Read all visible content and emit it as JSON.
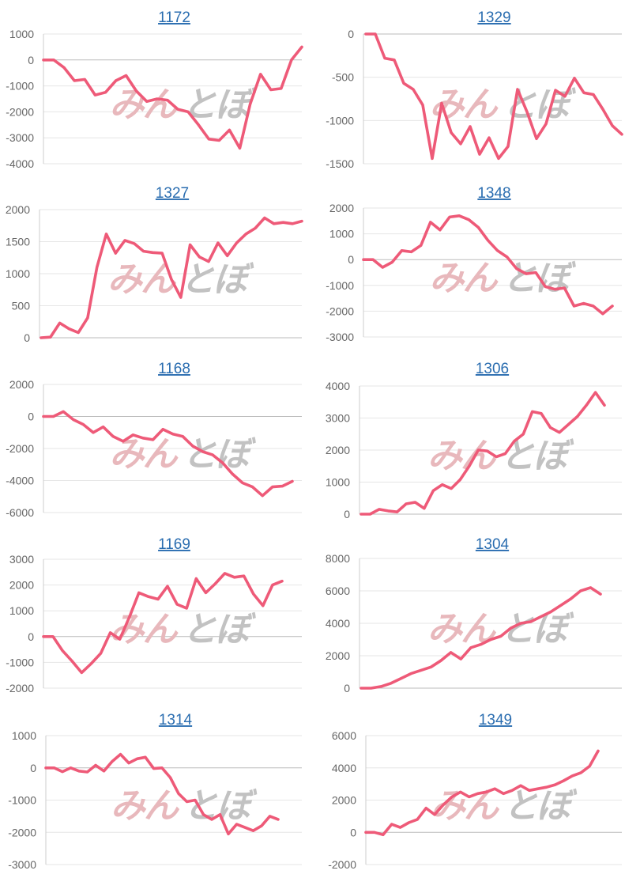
{
  "colors": {
    "line": "#ee5a78",
    "title": "#2a6db0"
  },
  "watermark": {
    "part1": "みん",
    "part2": "とぼ"
  },
  "chart_data": [
    {
      "type": "line",
      "title": "1172",
      "ylim": [
        -4000,
        1000
      ],
      "yticks": [
        1000,
        0,
        -1000,
        -2000,
        -3000,
        -4000
      ],
      "tick_labels": [
        "1000",
        "0",
        "-1000",
        "-2000",
        "-3000",
        "-4000"
      ],
      "values": [
        0,
        0,
        -300,
        -800,
        -750,
        -1350,
        -1250,
        -800,
        -600,
        -1200,
        -1600,
        -1500,
        -1550,
        -1900,
        -2000,
        -2500,
        -3050,
        -3100,
        -2700,
        -3400,
        -1700,
        -550,
        -1150,
        -1100,
        0,
        500
      ]
    },
    {
      "type": "line",
      "title": "1329",
      "ylim": [
        -1500,
        0
      ],
      "yticks": [
        0,
        -500,
        -1000,
        -1500
      ],
      "tick_labels": [
        "0",
        "-500",
        "-1000",
        "-1500"
      ],
      "values": [
        0,
        0,
        -280,
        -300,
        -570,
        -640,
        -820,
        -1440,
        -800,
        -1140,
        -1270,
        -1070,
        -1390,
        -1200,
        -1440,
        -1300,
        -640,
        -900,
        -1210,
        -1040,
        -650,
        -720,
        -510,
        -680,
        -700,
        -870,
        -1060,
        -1160
      ]
    },
    {
      "type": "line",
      "title": "1327",
      "ylim": [
        0,
        2000
      ],
      "yticks": [
        2000,
        1500,
        1000,
        500,
        0
      ],
      "tick_labels": [
        "2000",
        "1500",
        "1000",
        "500",
        "0"
      ],
      "values": [
        0,
        10,
        230,
        140,
        80,
        310,
        1100,
        1620,
        1320,
        1520,
        1470,
        1350,
        1330,
        1320,
        910,
        630,
        1450,
        1260,
        1190,
        1480,
        1280,
        1480,
        1620,
        1710,
        1870,
        1780,
        1800,
        1780,
        1820
      ]
    },
    {
      "type": "line",
      "title": "1348",
      "ylim": [
        -3000,
        2000
      ],
      "yticks": [
        2000,
        1000,
        0,
        -1000,
        -2000,
        -3000
      ],
      "tick_labels": [
        "2000",
        "1000",
        "0",
        "-1000",
        "-2000",
        "-3000"
      ],
      "values": [
        0,
        0,
        -300,
        -100,
        350,
        300,
        550,
        1450,
        1150,
        1650,
        1700,
        1550,
        1250,
        750,
        350,
        100,
        -350,
        -550,
        -500,
        -1050,
        -1150,
        -1100,
        -1800,
        -1700,
        -1800,
        -2100,
        -1800
      ]
    },
    {
      "type": "line",
      "title": "1168",
      "ylim": [
        -6000,
        2000
      ],
      "yticks": [
        2000,
        0,
        -2000,
        -4000,
        -6000
      ],
      "tick_labels": [
        "2000",
        "0",
        "-2000",
        "-4000",
        "-6000"
      ],
      "values": [
        0,
        0,
        300,
        -200,
        -500,
        -1000,
        -650,
        -1250,
        -1550,
        -1150,
        -1350,
        -1450,
        -800,
        -1100,
        -1250,
        -1850,
        -2200,
        -2400,
        -2900,
        -3600,
        -4150,
        -4400,
        -4950,
        -4400,
        -4350,
        -4050
      ]
    },
    {
      "type": "line",
      "title": "1306",
      "ylim": [
        0,
        4000
      ],
      "yticks": [
        4000,
        3000,
        2000,
        1000,
        0
      ],
      "tick_labels": [
        "4000",
        "3000",
        "2000",
        "1000",
        "0"
      ],
      "values": [
        0,
        0,
        150,
        100,
        70,
        320,
        370,
        180,
        730,
        920,
        800,
        1080,
        1500,
        2000,
        1970,
        1790,
        1890,
        2280,
        2500,
        3200,
        3140,
        2700,
        2550,
        2800,
        3050,
        3400,
        3800,
        3400
      ]
    },
    {
      "type": "line",
      "title": "1169",
      "ylim": [
        -2000,
        3000
      ],
      "yticks": [
        3000,
        2000,
        1000,
        0,
        -1000,
        -2000
      ],
      "tick_labels": [
        "3000",
        "2000",
        "1000",
        "0",
        "-1000",
        "-2000"
      ],
      "values": [
        0,
        0,
        -550,
        -950,
        -1400,
        -1050,
        -650,
        150,
        -100,
        750,
        1700,
        1550,
        1450,
        1950,
        1250,
        1100,
        2250,
        1700,
        2050,
        2450,
        2300,
        2350,
        1650,
        1200,
        2000,
        2150
      ]
    },
    {
      "type": "line",
      "title": "1304",
      "ylim": [
        0,
        8000
      ],
      "yticks": [
        8000,
        6000,
        4000,
        2000,
        0
      ],
      "tick_labels": [
        "8000",
        "6000",
        "4000",
        "2000",
        "0"
      ],
      "values": [
        0,
        0,
        100,
        300,
        600,
        900,
        1100,
        1300,
        1700,
        2200,
        1800,
        2500,
        2700,
        3000,
        3200,
        3700,
        4000,
        4100,
        4400,
        4700,
        5100,
        5500,
        6000,
        6200,
        5800
      ]
    },
    {
      "type": "line",
      "title": "1314",
      "ylim": [
        -3000,
        1000
      ],
      "yticks": [
        1000,
        0,
        -1000,
        -2000,
        -3000
      ],
      "tick_labels": [
        "1000",
        "0",
        "-1000",
        "-2000",
        "-3000"
      ],
      "values": [
        0,
        0,
        -120,
        0,
        -100,
        -130,
        80,
        -100,
        200,
        420,
        150,
        280,
        330,
        -20,
        0,
        -300,
        -800,
        -1050,
        -1000,
        -1450,
        -1600,
        -1450,
        -2050,
        -1750,
        -1850,
        -1950,
        -1800,
        -1500,
        -1600
      ]
    },
    {
      "type": "line",
      "title": "1349",
      "ylim": [
        -2000,
        6000
      ],
      "yticks": [
        6000,
        4000,
        2000,
        0,
        -2000
      ],
      "tick_labels": [
        "6000",
        "4000",
        "2000",
        "0",
        "-2000"
      ],
      "values": [
        0,
        0,
        -150,
        500,
        300,
        600,
        800,
        1500,
        1100,
        1700,
        2200,
        2500,
        2200,
        2400,
        2500,
        2700,
        2400,
        2600,
        2900,
        2600,
        2700,
        2800,
        2950,
        3200,
        3500,
        3700,
        4100,
        5050
      ]
    }
  ]
}
